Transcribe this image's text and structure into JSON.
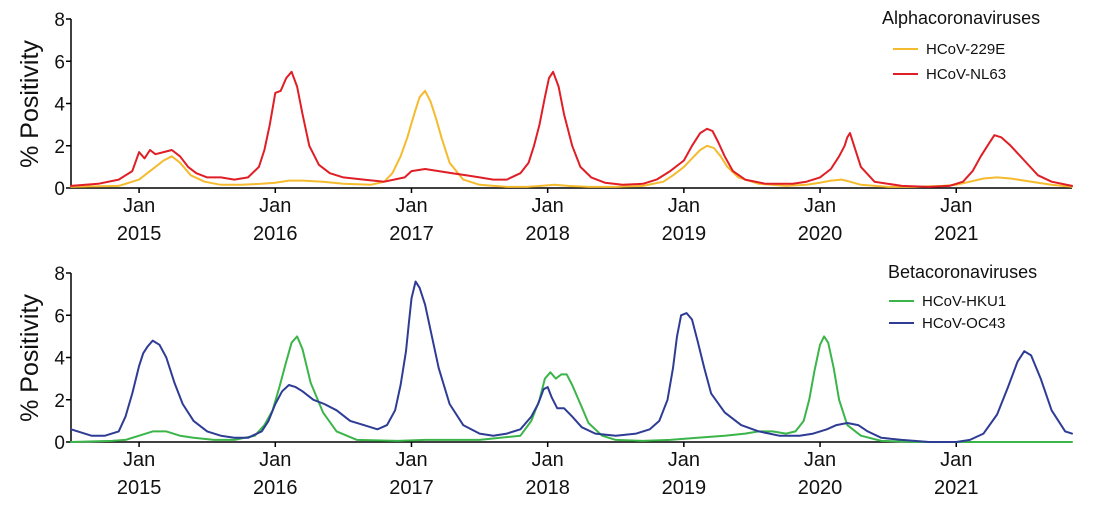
{
  "chart_data": [
    {
      "type": "line",
      "title": "Alphacoronaviruses",
      "ylabel": "% Positivity",
      "xlabel": "",
      "ylim": [
        0,
        8
      ],
      "yticks": [
        "0",
        "2",
        "4",
        "6",
        "8"
      ],
      "xticks": [
        {
          "month": "Jan",
          "year": "2015"
        },
        {
          "month": "Jan",
          "year": "2016"
        },
        {
          "month": "Jan",
          "year": "2017"
        },
        {
          "month": "Jan",
          "year": "2018"
        },
        {
          "month": "Jan",
          "year": "2019"
        },
        {
          "month": "Jan",
          "year": "2020"
        },
        {
          "month": "Jan",
          "year": "2021"
        }
      ],
      "x_range": [
        2014.5,
        2021.85
      ],
      "legend_position": "top-right",
      "series": [
        {
          "name": "HCoV-229E",
          "color": "#f5bb2e",
          "x": [
            2014.5,
            2014.85,
            2015.0,
            2015.06,
            2015.12,
            2015.18,
            2015.24,
            2015.3,
            2015.38,
            2015.48,
            2015.6,
            2015.75,
            2015.9,
            2016.0,
            2016.1,
            2016.2,
            2016.35,
            2016.5,
            2016.7,
            2016.8,
            2016.86,
            2016.92,
            2016.97,
            2017.02,
            2017.06,
            2017.1,
            2017.14,
            2017.18,
            2017.22,
            2017.28,
            2017.38,
            2017.5,
            2017.7,
            2017.85,
            2017.95,
            2018.05,
            2018.15,
            2018.3,
            2018.5,
            2018.7,
            2018.85,
            2018.92,
            2019.0,
            2019.06,
            2019.12,
            2019.17,
            2019.22,
            2019.27,
            2019.32,
            2019.4,
            2019.55,
            2019.75,
            2019.9,
            2020.0,
            2020.08,
            2020.16,
            2020.22,
            2020.3,
            2020.5,
            2020.7,
            2020.9,
            2021.0,
            2021.1,
            2021.2,
            2021.3,
            2021.4,
            2021.5,
            2021.6,
            2021.7,
            2021.85
          ],
          "values": [
            0.05,
            0.1,
            0.4,
            0.7,
            1.0,
            1.3,
            1.5,
            1.2,
            0.6,
            0.3,
            0.15,
            0.15,
            0.2,
            0.25,
            0.35,
            0.35,
            0.3,
            0.2,
            0.15,
            0.3,
            0.7,
            1.5,
            2.4,
            3.5,
            4.3,
            4.6,
            4.1,
            3.3,
            2.4,
            1.2,
            0.4,
            0.15,
            0.05,
            0.05,
            0.1,
            0.15,
            0.1,
            0.05,
            0.05,
            0.1,
            0.3,
            0.6,
            1.0,
            1.4,
            1.8,
            2.0,
            1.9,
            1.5,
            1.0,
            0.5,
            0.2,
            0.1,
            0.15,
            0.25,
            0.35,
            0.4,
            0.3,
            0.15,
            0.05,
            0.05,
            0.1,
            0.15,
            0.3,
            0.45,
            0.5,
            0.45,
            0.35,
            0.25,
            0.15,
            0.05
          ]
        },
        {
          "name": "HCoV-NL63",
          "color": "#e01e26",
          "x": [
            2014.5,
            2014.7,
            2014.85,
            2014.95,
            2015.0,
            2015.04,
            2015.08,
            2015.12,
            2015.18,
            2015.24,
            2015.3,
            2015.36,
            2015.42,
            2015.5,
            2015.6,
            2015.7,
            2015.8,
            2015.88,
            2015.92,
            2015.96,
            2016.0,
            2016.04,
            2016.08,
            2016.12,
            2016.16,
            2016.2,
            2016.25,
            2016.32,
            2016.4,
            2016.5,
            2016.65,
            2016.8,
            2016.95,
            2017.0,
            2017.1,
            2017.2,
            2017.3,
            2017.4,
            2017.5,
            2017.6,
            2017.7,
            2017.8,
            2017.86,
            2017.9,
            2017.94,
            2017.98,
            2018.01,
            2018.04,
            2018.08,
            2018.12,
            2018.18,
            2018.24,
            2018.32,
            2018.42,
            2018.55,
            2018.7,
            2018.8,
            2018.9,
            2019.0,
            2019.06,
            2019.12,
            2019.17,
            2019.21,
            2019.25,
            2019.3,
            2019.36,
            2019.45,
            2019.6,
            2019.8,
            2019.9,
            2020.0,
            2020.08,
            2020.14,
            2020.18,
            2020.2,
            2020.22,
            2020.25,
            2020.3,
            2020.4,
            2020.6,
            2020.8,
            2020.95,
            2021.05,
            2021.12,
            2021.18,
            2021.24,
            2021.28,
            2021.33,
            2021.4,
            2021.5,
            2021.6,
            2021.7,
            2021.85
          ],
          "values": [
            0.1,
            0.2,
            0.4,
            0.8,
            1.7,
            1.4,
            1.8,
            1.6,
            1.7,
            1.8,
            1.5,
            1.0,
            0.7,
            0.5,
            0.5,
            0.4,
            0.5,
            1.0,
            1.8,
            3.0,
            4.5,
            4.6,
            5.2,
            5.5,
            4.8,
            3.5,
            2.0,
            1.1,
            0.7,
            0.5,
            0.4,
            0.3,
            0.5,
            0.8,
            0.9,
            0.8,
            0.7,
            0.6,
            0.5,
            0.4,
            0.4,
            0.7,
            1.2,
            2.0,
            3.0,
            4.3,
            5.2,
            5.5,
            4.8,
            3.5,
            2.0,
            1.0,
            0.5,
            0.25,
            0.15,
            0.2,
            0.4,
            0.8,
            1.3,
            2.0,
            2.6,
            2.8,
            2.7,
            2.2,
            1.5,
            0.8,
            0.4,
            0.2,
            0.2,
            0.3,
            0.5,
            0.9,
            1.5,
            2.0,
            2.4,
            2.6,
            2.0,
            1.0,
            0.3,
            0.1,
            0.05,
            0.1,
            0.3,
            0.8,
            1.5,
            2.1,
            2.5,
            2.4,
            2.0,
            1.3,
            0.6,
            0.3,
            0.1
          ]
        }
      ]
    },
    {
      "type": "line",
      "title": "Betacoronaviruses",
      "ylabel": "% Positivity",
      "xlabel": "",
      "ylim": [
        0,
        8
      ],
      "yticks": [
        "0",
        "2",
        "4",
        "6",
        "8"
      ],
      "xticks": [
        {
          "month": "Jan",
          "year": "2015"
        },
        {
          "month": "Jan",
          "year": "2016"
        },
        {
          "month": "Jan",
          "year": "2017"
        },
        {
          "month": "Jan",
          "year": "2018"
        },
        {
          "month": "Jan",
          "year": "2019"
        },
        {
          "month": "Jan",
          "year": "2020"
        },
        {
          "month": "Jan",
          "year": "2021"
        }
      ],
      "x_range": [
        2014.5,
        2021.85
      ],
      "legend_position": "top-right",
      "series": [
        {
          "name": "HCoV-HKU1",
          "color": "#3bb54a",
          "x": [
            2014.5,
            2014.8,
            2014.9,
            2015.0,
            2015.1,
            2015.2,
            2015.3,
            2015.4,
            2015.55,
            2015.7,
            2015.85,
            2015.92,
            2015.98,
            2016.03,
            2016.08,
            2016.12,
            2016.16,
            2016.2,
            2016.26,
            2016.35,
            2016.45,
            2016.6,
            2016.9,
            2017.1,
            2017.5,
            2017.8,
            2017.88,
            2017.94,
            2017.98,
            2018.02,
            2018.06,
            2018.1,
            2018.14,
            2018.18,
            2018.24,
            2018.3,
            2018.4,
            2018.5,
            2018.7,
            2018.9,
            2019.1,
            2019.3,
            2019.45,
            2019.55,
            2019.65,
            2019.75,
            2019.82,
            2019.88,
            2019.92,
            2019.96,
            2020.0,
            2020.03,
            2020.06,
            2020.1,
            2020.14,
            2020.2,
            2020.3,
            2020.45,
            2020.7,
            2020.9,
            2021.2,
            2021.5,
            2021.85
          ],
          "values": [
            0.0,
            0.05,
            0.1,
            0.3,
            0.5,
            0.5,
            0.3,
            0.2,
            0.1,
            0.1,
            0.3,
            0.8,
            1.5,
            2.6,
            3.8,
            4.7,
            5.0,
            4.4,
            2.8,
            1.4,
            0.5,
            0.1,
            0.05,
            0.1,
            0.1,
            0.3,
            1.0,
            2.0,
            3.0,
            3.3,
            3.0,
            3.2,
            3.2,
            2.7,
            1.8,
            0.9,
            0.3,
            0.1,
            0.05,
            0.1,
            0.2,
            0.3,
            0.4,
            0.5,
            0.5,
            0.4,
            0.5,
            1.0,
            2.0,
            3.4,
            4.6,
            5.0,
            4.7,
            3.5,
            2.0,
            0.8,
            0.3,
            0.05,
            0.0,
            0.0,
            0.0,
            0.0,
            0.0
          ]
        },
        {
          "name": "HCoV-OC43",
          "color": "#2e3c95",
          "x": [
            2014.5,
            2014.65,
            2014.75,
            2014.85,
            2014.9,
            2014.95,
            2015.0,
            2015.03,
            2015.06,
            2015.1,
            2015.15,
            2015.2,
            2015.26,
            2015.32,
            2015.4,
            2015.5,
            2015.6,
            2015.7,
            2015.8,
            2015.9,
            2015.95,
            2016.0,
            2016.05,
            2016.1,
            2016.15,
            2016.2,
            2016.28,
            2016.36,
            2016.45,
            2016.55,
            2016.65,
            2016.75,
            2016.82,
            2016.88,
            2016.92,
            2016.96,
            2016.98,
            2017.0,
            2017.03,
            2017.06,
            2017.1,
            2017.15,
            2017.2,
            2017.28,
            2017.38,
            2017.5,
            2017.6,
            2017.7,
            2017.8,
            2017.88,
            2017.93,
            2017.97,
            2018.0,
            2018.03,
            2018.07,
            2018.12,
            2018.18,
            2018.25,
            2018.35,
            2018.5,
            2018.65,
            2018.75,
            2018.82,
            2018.88,
            2018.92,
            2018.95,
            2018.98,
            2019.02,
            2019.06,
            2019.1,
            2019.15,
            2019.2,
            2019.3,
            2019.42,
            2019.55,
            2019.7,
            2019.85,
            2019.95,
            2020.05,
            2020.12,
            2020.2,
            2020.28,
            2020.35,
            2020.45,
            2020.6,
            2020.8,
            2021.0,
            2021.1,
            2021.2,
            2021.3,
            2021.38,
            2021.45,
            2021.5,
            2021.55,
            2021.62,
            2021.7,
            2021.8,
            2021.85
          ],
          "values": [
            0.6,
            0.3,
            0.3,
            0.5,
            1.2,
            2.3,
            3.6,
            4.2,
            4.5,
            4.8,
            4.6,
            4.0,
            2.8,
            1.8,
            1.0,
            0.5,
            0.3,
            0.2,
            0.2,
            0.5,
            1.0,
            1.8,
            2.4,
            2.7,
            2.6,
            2.4,
            2.0,
            1.8,
            1.5,
            1.0,
            0.8,
            0.6,
            0.8,
            1.5,
            2.7,
            4.3,
            5.6,
            6.8,
            7.6,
            7.3,
            6.5,
            5.0,
            3.5,
            1.8,
            0.8,
            0.4,
            0.3,
            0.4,
            0.6,
            1.2,
            1.8,
            2.5,
            2.6,
            2.1,
            1.6,
            1.6,
            1.2,
            0.7,
            0.4,
            0.3,
            0.4,
            0.6,
            1.0,
            2.0,
            3.5,
            5.0,
            6.0,
            6.1,
            5.8,
            4.8,
            3.5,
            2.3,
            1.4,
            0.8,
            0.5,
            0.3,
            0.3,
            0.4,
            0.6,
            0.8,
            0.9,
            0.8,
            0.5,
            0.2,
            0.1,
            0.0,
            0.0,
            0.1,
            0.4,
            1.3,
            2.6,
            3.8,
            4.3,
            4.1,
            3.0,
            1.5,
            0.5,
            0.4
          ]
        }
      ]
    }
  ]
}
